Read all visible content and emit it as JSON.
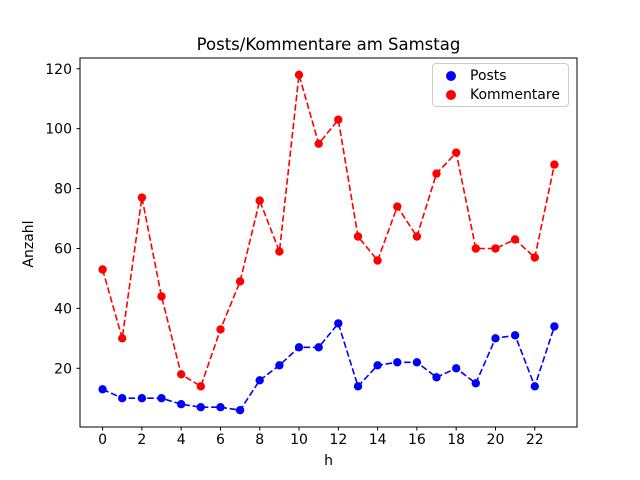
{
  "chart_data": {
    "type": "line",
    "title": "Posts/Kommentare am Samstag",
    "xlabel": "h",
    "ylabel": "Anzahl",
    "x": [
      0,
      1,
      2,
      3,
      4,
      5,
      6,
      7,
      8,
      9,
      10,
      11,
      12,
      13,
      14,
      15,
      16,
      17,
      18,
      19,
      20,
      21,
      22,
      23
    ],
    "series": [
      {
        "name": "Posts",
        "color": "#0000ff",
        "values": [
          13,
          10,
          10,
          10,
          8,
          7,
          7,
          6,
          16,
          21,
          27,
          27,
          35,
          14,
          21,
          22,
          22,
          17,
          20,
          15,
          30,
          31,
          14,
          34
        ]
      },
      {
        "name": "Kommentare",
        "color": "#ff0000",
        "values": [
          53,
          30,
          77,
          44,
          18,
          14,
          33,
          49,
          76,
          59,
          118,
          95,
          103,
          64,
          56,
          74,
          64,
          85,
          92,
          60,
          60,
          63,
          57,
          88
        ]
      }
    ],
    "xticks": [
      0,
      2,
      4,
      6,
      8,
      10,
      12,
      14,
      16,
      18,
      20,
      22
    ],
    "yticks": [
      20,
      40,
      60,
      80,
      100,
      120
    ],
    "xlim": [
      -1.15,
      24.15
    ],
    "ylim": [
      0.4,
      123.6
    ],
    "grid": false,
    "line_style": "dashed",
    "marker": "circle",
    "legend": {
      "position": "upper right",
      "entries": [
        "Posts",
        "Kommentare"
      ]
    }
  },
  "colors": {
    "posts": "#0000ff",
    "kommentare": "#ff0000",
    "axis": "#000000",
    "legend_border": "#cccccc",
    "background": "#ffffff"
  }
}
